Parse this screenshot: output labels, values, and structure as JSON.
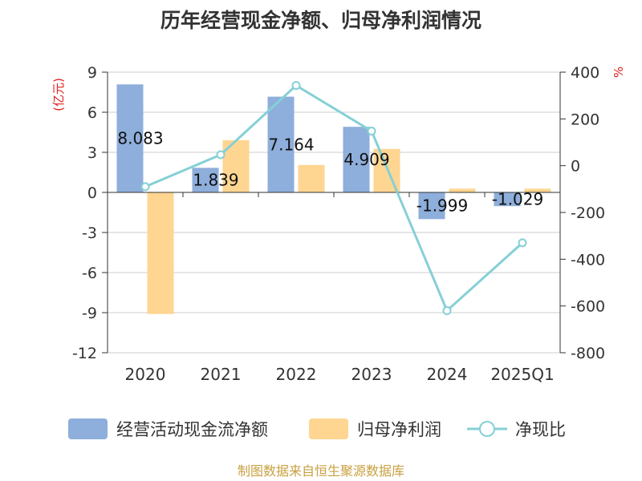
{
  "title": "历年经营现金净额、归母净利润情况",
  "source": "制图数据来自恒生聚源数据库",
  "colors": {
    "cash_flow": "#8eaedb",
    "net_profit": "#fed591",
    "ratio_line": "#85d0d6",
    "axis": "#333333",
    "grid": "#cccccc",
    "unit": "#e02020",
    "source": "#c8a040"
  },
  "chart_data": {
    "type": "bar",
    "title": "历年经营现金净额、归母净利润情况",
    "categories": [
      "2020",
      "2021",
      "2022",
      "2023",
      "2024",
      "2025Q1"
    ],
    "y_left": {
      "unit": "(亿元)",
      "range": [
        -12,
        9
      ],
      "ticks": [
        "9",
        "6",
        "3",
        "0",
        "-3",
        "-6",
        "-9",
        "-12"
      ]
    },
    "y_right": {
      "unit": "%",
      "range": [
        -800,
        400
      ],
      "ticks": [
        "400",
        "200",
        "0",
        "-200",
        "-400",
        "-600",
        "-800"
      ]
    },
    "series": [
      {
        "name": "经营活动现金流净额",
        "axis": "left",
        "type": "bar",
        "values": [
          8.083,
          1.839,
          7.164,
          4.909,
          -1.999,
          -1.029
        ],
        "labels": [
          "8.083",
          "1.839",
          "7.164",
          "4.909",
          "-1.999",
          "-1.029"
        ]
      },
      {
        "name": "归母净利润",
        "axis": "left",
        "type": "bar",
        "values": [
          -9.1,
          3.9,
          2.05,
          3.25,
          0.28,
          0.28
        ]
      },
      {
        "name": "净现比",
        "axis": "right",
        "type": "line",
        "values": [
          -90,
          47,
          343,
          148,
          -620,
          -330
        ]
      }
    ],
    "grid": true,
    "legend": "bottom"
  }
}
